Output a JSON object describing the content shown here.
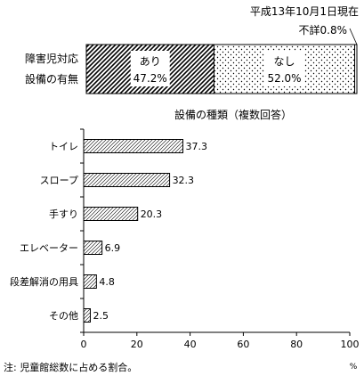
{
  "chart_data": [
    {
      "type": "bar",
      "orientation": "horizontal-stacked",
      "as_of": "平成13年10月1日現在",
      "row_label_lines": [
        "障害児対応",
        "設備の有無"
      ],
      "segments": [
        {
          "label": "あり",
          "value": 47.2,
          "value_text": "47.2%",
          "pattern": "diagonal-hatch"
        },
        {
          "label": "なし",
          "value": 52.0,
          "value_text": "52.0%",
          "pattern": "dots"
        },
        {
          "label": "不詳",
          "value": 0.8,
          "value_text": "0.8%",
          "pattern": "blank"
        }
      ]
    },
    {
      "type": "bar",
      "orientation": "horizontal",
      "title": "設備の種類（複数回答）",
      "categories": [
        "トイレ",
        "スロープ",
        "手すり",
        "エレベーター",
        "段差解消の用具",
        "その他"
      ],
      "values": [
        37.3,
        32.3,
        20.3,
        6.9,
        4.8,
        2.5
      ],
      "value_labels": [
        "37.3",
        "32.3",
        "20.3",
        "6.9",
        "4.8",
        "2.5"
      ],
      "xlim": [
        0,
        100
      ],
      "xticks": [
        "0",
        "20",
        "40",
        "60",
        "80",
        "100"
      ],
      "xunit": "%",
      "grid": false
    }
  ],
  "note": "注: 児童館総数に占める割合。"
}
